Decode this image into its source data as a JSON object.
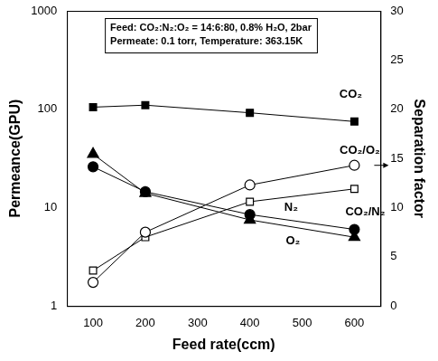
{
  "chart_data": {
    "type": "line",
    "annotations": [
      "Feed: CO₂:N₂:O₂ = 14:6:80, 0.8% H₂O, 2bar",
      "Permeate: 0.1 torr, Temperature: 363.15K"
    ],
    "x_label": "Feed rate(ccm)",
    "y_label": "Permeance(GPU)",
    "y2_label": "Separation factor",
    "x": [
      100,
      200,
      400,
      600
    ],
    "series": [
      {
        "name": "CO₂",
        "color": "#000000",
        "marker": "square",
        "values": [
          105,
          110,
          92,
          75
        ]
      },
      {
        "name": "N₂",
        "color": "#000000",
        "marker": "circle",
        "values": [
          26,
          14.5,
          8.5,
          6
        ]
      },
      {
        "name": "O₂",
        "color": "#000000",
        "marker": "triangle",
        "values": [
          35,
          14,
          7.5,
          5
        ]
      },
      {
        "name": "CO₂/O₂",
        "color": "#000000",
        "marker": "open circle",
        "axis": "y2",
        "values": [
          2.4,
          7.5,
          12.3,
          14.3
        ]
      },
      {
        "name": "CO₂/N₂",
        "color": "#000000",
        "marker": "open square",
        "axis": "y2",
        "values": [
          3.6,
          7.0,
          10.6,
          11.9
        ]
      }
    ],
    "xlim": [
      50,
      650
    ],
    "xticks": [
      100,
      200,
      300,
      400,
      500,
      600
    ],
    "ylim": [
      1,
      1000
    ],
    "yticks": [
      1,
      10,
      100,
      1000
    ],
    "y2lim": [
      0,
      30
    ],
    "y2ticks": [
      0,
      5,
      10,
      15,
      20,
      25,
      30
    ],
    "log": "y",
    "grid": false
  }
}
